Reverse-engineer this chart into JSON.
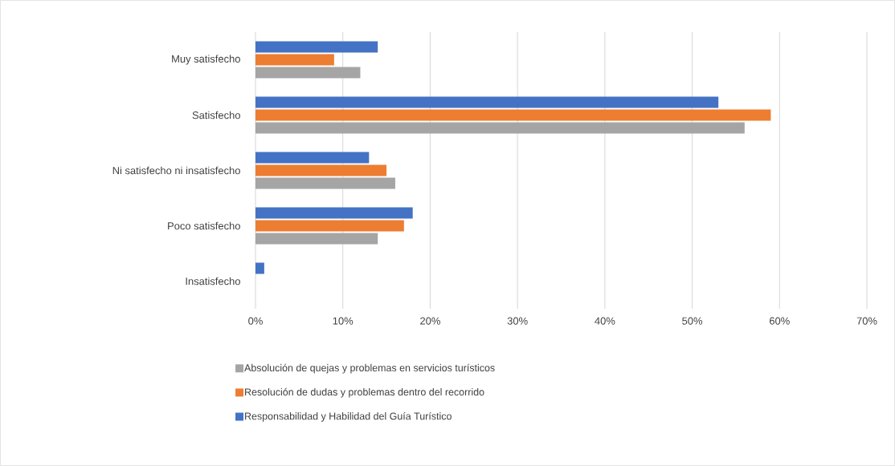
{
  "chart_data": {
    "type": "bar",
    "orientation": "horizontal",
    "categories": [
      "Muy satisfecho",
      "Satisfecho",
      "Ni satisfecho ni insatisfecho",
      "Poco satisfecho",
      "Insatisfecho"
    ],
    "series": [
      {
        "name": "Absolución de quejas y problemas en servicios turísticos",
        "color": "#a5a5a5",
        "values": [
          12,
          56,
          16,
          14,
          0
        ]
      },
      {
        "name": "Resolución de dudas y problemas dentro del recorrido",
        "color": "#ed7d31",
        "values": [
          9,
          59,
          15,
          17,
          0
        ]
      },
      {
        "name": "Responsabilidad y Habilidad del Guía Turístico",
        "color": "#4472c4",
        "values": [
          14,
          53,
          13,
          18,
          1
        ]
      }
    ],
    "xlim": [
      0,
      70
    ],
    "xticks": [
      {
        "value": 0,
        "label": "0%"
      },
      {
        "value": 10,
        "label": "10%"
      },
      {
        "value": 20,
        "label": "20%"
      },
      {
        "value": 30,
        "label": "30%"
      },
      {
        "value": 40,
        "label": "40%"
      },
      {
        "value": 50,
        "label": "50%"
      },
      {
        "value": 60,
        "label": "60%"
      },
      {
        "value": 70,
        "label": "70%"
      }
    ],
    "grid": "x",
    "legend": "bottom"
  }
}
